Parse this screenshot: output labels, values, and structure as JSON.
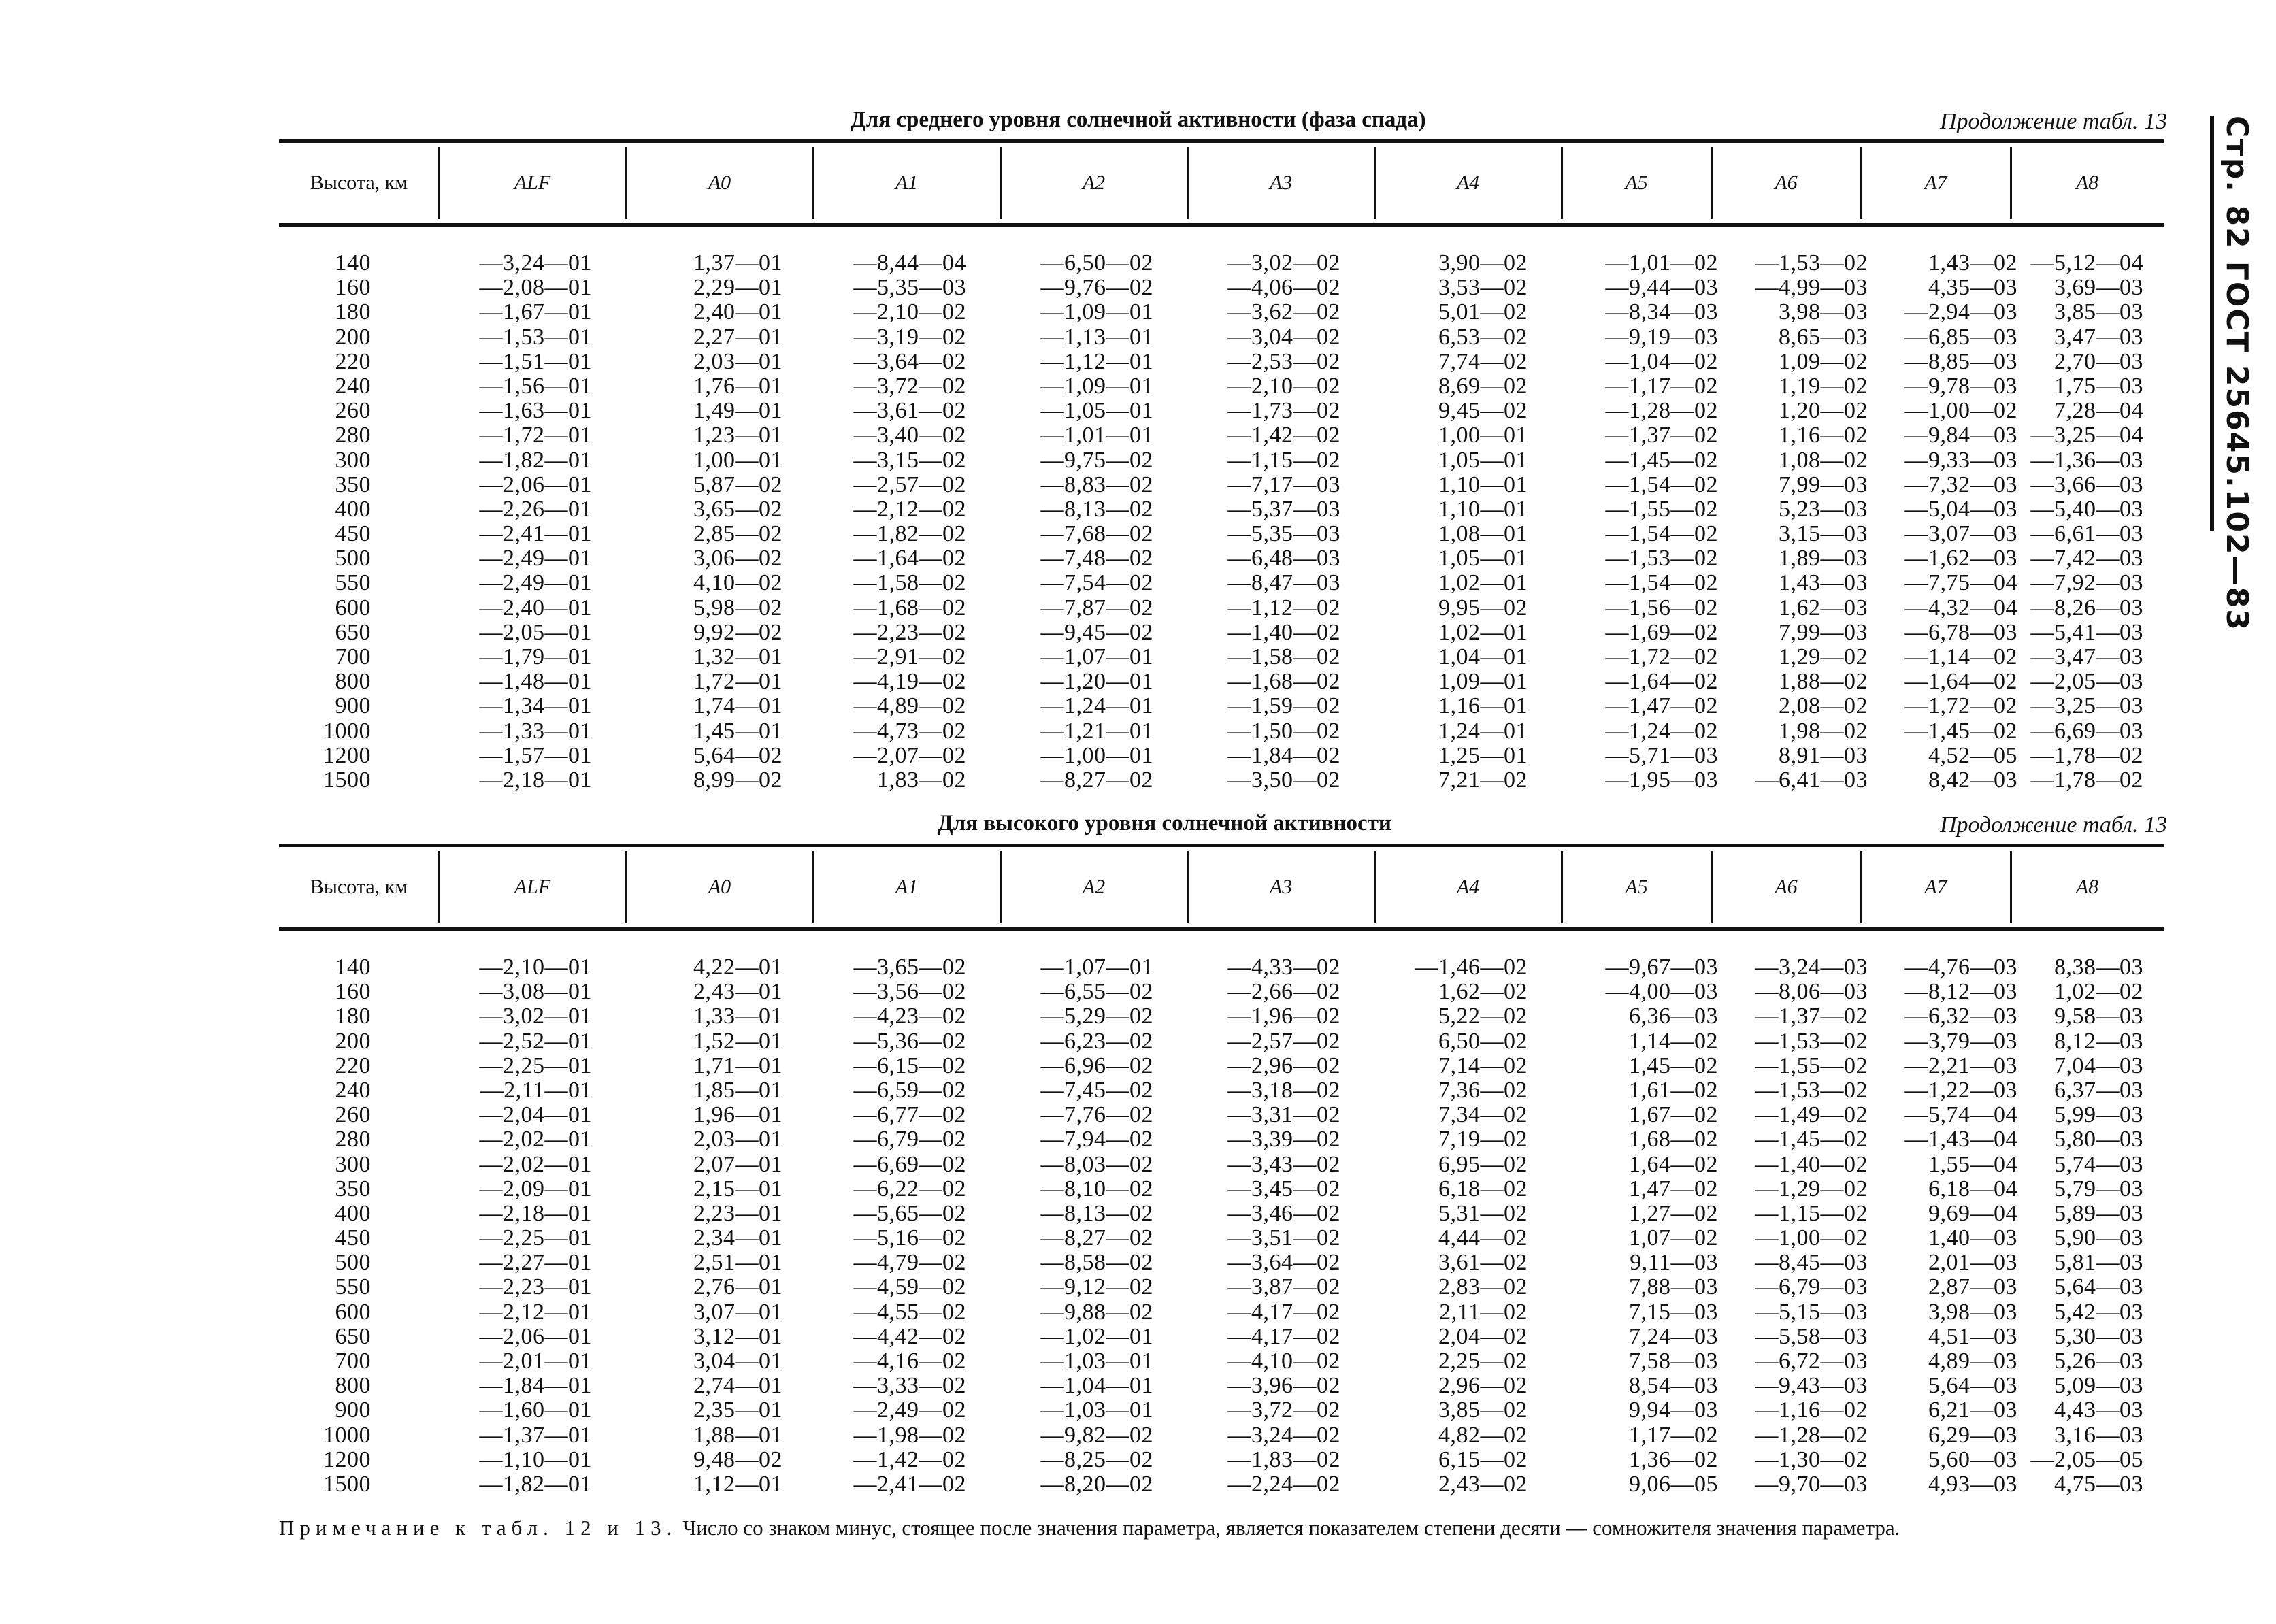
{
  "page_side_header": "Стр. 82 ГОСТ 25645.102—83",
  "tables": [
    {
      "caption": "Для среднего уровня солнечной активности (фаза спада)",
      "continuation": "Продолжение табл. 13",
      "headers": [
        "Высота, км",
        "ALF",
        "A0",
        "A1",
        "A2",
        "A3",
        "A4",
        "A5",
        "A6",
        "A7",
        "A8"
      ],
      "rows": [
        [
          "140",
          "—3,24—01",
          "1,37—01",
          "—8,44—04",
          "—6,50—02",
          "—3,02—02",
          "3,90—02",
          "—1,01—02",
          "—1,53—02",
          "1,43—02",
          "—5,12—04"
        ],
        [
          "160",
          "—2,08—01",
          "2,29—01",
          "—5,35—03",
          "—9,76—02",
          "—4,06—02",
          "3,53—02",
          "—9,44—03",
          "—4,99—03",
          "4,35—03",
          "3,69—03"
        ],
        [
          "180",
          "—1,67—01",
          "2,40—01",
          "—2,10—02",
          "—1,09—01",
          "—3,62—02",
          "5,01—02",
          "—8,34—03",
          "3,98—03",
          "—2,94—03",
          "3,85—03"
        ],
        [
          "200",
          "—1,53—01",
          "2,27—01",
          "—3,19—02",
          "—1,13—01",
          "—3,04—02",
          "6,53—02",
          "—9,19—03",
          "8,65—03",
          "—6,85—03",
          "3,47—03"
        ],
        [
          "220",
          "—1,51—01",
          "2,03—01",
          "—3,64—02",
          "—1,12—01",
          "—2,53—02",
          "7,74—02",
          "—1,04—02",
          "1,09—02",
          "—8,85—03",
          "2,70—03"
        ],
        [
          "240",
          "—1,56—01",
          "1,76—01",
          "—3,72—02",
          "—1,09—01",
          "—2,10—02",
          "8,69—02",
          "—1,17—02",
          "1,19—02",
          "—9,78—03",
          "1,75—03"
        ],
        [
          "260",
          "—1,63—01",
          "1,49—01",
          "—3,61—02",
          "—1,05—01",
          "—1,73—02",
          "9,45—02",
          "—1,28—02",
          "1,20—02",
          "—1,00—02",
          "7,28—04"
        ],
        [
          "280",
          "—1,72—01",
          "1,23—01",
          "—3,40—02",
          "—1,01—01",
          "—1,42—02",
          "1,00—01",
          "—1,37—02",
          "1,16—02",
          "—9,84—03",
          "—3,25—04"
        ],
        [
          "300",
          "—1,82—01",
          "1,00—01",
          "—3,15—02",
          "—9,75—02",
          "—1,15—02",
          "1,05—01",
          "—1,45—02",
          "1,08—02",
          "—9,33—03",
          "—1,36—03"
        ],
        [
          "350",
          "—2,06—01",
          "5,87—02",
          "—2,57—02",
          "—8,83—02",
          "—7,17—03",
          "1,10—01",
          "—1,54—02",
          "7,99—03",
          "—7,32—03",
          "—3,66—03"
        ],
        [
          "400",
          "—2,26—01",
          "3,65—02",
          "—2,12—02",
          "—8,13—02",
          "—5,37—03",
          "1,10—01",
          "—1,55—02",
          "5,23—03",
          "—5,04—03",
          "—5,40—03"
        ],
        [
          "450",
          "—2,41—01",
          "2,85—02",
          "—1,82—02",
          "—7,68—02",
          "—5,35—03",
          "1,08—01",
          "—1,54—02",
          "3,15—03",
          "—3,07—03",
          "—6,61—03"
        ],
        [
          "500",
          "—2,49—01",
          "3,06—02",
          "—1,64—02",
          "—7,48—02",
          "—6,48—03",
          "1,05—01",
          "—1,53—02",
          "1,89—03",
          "—1,62—03",
          "—7,42—03"
        ],
        [
          "550",
          "—2,49—01",
          "4,10—02",
          "—1,58—02",
          "—7,54—02",
          "—8,47—03",
          "1,02—01",
          "—1,54—02",
          "1,43—03",
          "—7,75—04",
          "—7,92—03"
        ],
        [
          "600",
          "—2,40—01",
          "5,98—02",
          "—1,68—02",
          "—7,87—02",
          "—1,12—02",
          "9,95—02",
          "—1,56—02",
          "1,62—03",
          "—4,32—04",
          "—8,26—03"
        ],
        [
          "650",
          "—2,05—01",
          "9,92—02",
          "—2,23—02",
          "—9,45—02",
          "—1,40—02",
          "1,02—01",
          "—1,69—02",
          "7,99—03",
          "—6,78—03",
          "—5,41—03"
        ],
        [
          "700",
          "—1,79—01",
          "1,32—01",
          "—2,91—02",
          "—1,07—01",
          "—1,58—02",
          "1,04—01",
          "—1,72—02",
          "1,29—02",
          "—1,14—02",
          "—3,47—03"
        ],
        [
          "800",
          "—1,48—01",
          "1,72—01",
          "—4,19—02",
          "—1,20—01",
          "—1,68—02",
          "1,09—01",
          "—1,64—02",
          "1,88—02",
          "—1,64—02",
          "—2,05—03"
        ],
        [
          "900",
          "—1,34—01",
          "1,74—01",
          "—4,89—02",
          "—1,24—01",
          "—1,59—02",
          "1,16—01",
          "—1,47—02",
          "2,08—02",
          "—1,72—02",
          "—3,25—03"
        ],
        [
          "1000",
          "—1,33—01",
          "1,45—01",
          "—4,73—02",
          "—1,21—01",
          "—1,50—02",
          "1,24—01",
          "—1,24—02",
          "1,98—02",
          "—1,45—02",
          "—6,69—03"
        ],
        [
          "1200",
          "—1,57—01",
          "5,64—02",
          "—2,07—02",
          "—1,00—01",
          "—1,84—02",
          "1,25—01",
          "—5,71—03",
          "8,91—03",
          "4,52—05",
          "—1,78—02"
        ],
        [
          "1500",
          "—2,18—01",
          "8,99—02",
          "1,83—02",
          "—8,27—02",
          "—3,50—02",
          "7,21—02",
          "—1,95—03",
          "—6,41—03",
          "8,42—03",
          "—1,78—02"
        ]
      ]
    },
    {
      "caption": "Для высокого уровня солнечной активности",
      "continuation": "Продолжение табл. 13",
      "headers": [
        "Высота, км",
        "ALF",
        "A0",
        "A1",
        "A2",
        "A3",
        "A4",
        "A5",
        "A6",
        "A7",
        "A8"
      ],
      "rows": [
        [
          "140",
          "—2,10—01",
          "4,22—01",
          "—3,65—02",
          "—1,07—01",
          "—4,33—02",
          "—1,46—02",
          "—9,67—03",
          "—3,24—03",
          "—4,76—03",
          "8,38—03"
        ],
        [
          "160",
          "—3,08—01",
          "2,43—01",
          "—3,56—02",
          "—6,55—02",
          "—2,66—02",
          "1,62—02",
          "—4,00—03",
          "—8,06—03",
          "—8,12—03",
          "1,02—02"
        ],
        [
          "180",
          "—3,02—01",
          "1,33—01",
          "—4,23—02",
          "—5,29—02",
          "—1,96—02",
          "5,22—02",
          "6,36—03",
          "—1,37—02",
          "—6,32—03",
          "9,58—03"
        ],
        [
          "200",
          "—2,52—01",
          "1,52—01",
          "—5,36—02",
          "—6,23—02",
          "—2,57—02",
          "6,50—02",
          "1,14—02",
          "—1,53—02",
          "—3,79—03",
          "8,12—03"
        ],
        [
          "220",
          "—2,25—01",
          "1,71—01",
          "—6,15—02",
          "—6,96—02",
          "—2,96—02",
          "7,14—02",
          "1,45—02",
          "—1,55—02",
          "—2,21—03",
          "7,04—03"
        ],
        [
          "240",
          "—2,11—01",
          "1,85—01",
          "—6,59—02",
          "—7,45—02",
          "—3,18—02",
          "7,36—02",
          "1,61—02",
          "—1,53—02",
          "—1,22—03",
          "6,37—03"
        ],
        [
          "260",
          "—2,04—01",
          "1,96—01",
          "—6,77—02",
          "—7,76—02",
          "—3,31—02",
          "7,34—02",
          "1,67—02",
          "—1,49—02",
          "—5,74—04",
          "5,99—03"
        ],
        [
          "280",
          "—2,02—01",
          "2,03—01",
          "—6,79—02",
          "—7,94—02",
          "—3,39—02",
          "7,19—02",
          "1,68—02",
          "—1,45—02",
          "—1,43—04",
          "5,80—03"
        ],
        [
          "300",
          "—2,02—01",
          "2,07—01",
          "—6,69—02",
          "—8,03—02",
          "—3,43—02",
          "6,95—02",
          "1,64—02",
          "—1,40—02",
          "1,55—04",
          "5,74—03"
        ],
        [
          "350",
          "—2,09—01",
          "2,15—01",
          "—6,22—02",
          "—8,10—02",
          "—3,45—02",
          "6,18—02",
          "1,47—02",
          "—1,29—02",
          "6,18—04",
          "5,79—03"
        ],
        [
          "400",
          "—2,18—01",
          "2,23—01",
          "—5,65—02",
          "—8,13—02",
          "—3,46—02",
          "5,31—02",
          "1,27—02",
          "—1,15—02",
          "9,69—04",
          "5,89—03"
        ],
        [
          "450",
          "—2,25—01",
          "2,34—01",
          "—5,16—02",
          "—8,27—02",
          "—3,51—02",
          "4,44—02",
          "1,07—02",
          "—1,00—02",
          "1,40—03",
          "5,90—03"
        ],
        [
          "500",
          "—2,27—01",
          "2,51—01",
          "—4,79—02",
          "—8,58—02",
          "—3,64—02",
          "3,61—02",
          "9,11—03",
          "—8,45—03",
          "2,01—03",
          "5,81—03"
        ],
        [
          "550",
          "—2,23—01",
          "2,76—01",
          "—4,59—02",
          "—9,12—02",
          "—3,87—02",
          "2,83—02",
          "7,88—03",
          "—6,79—03",
          "2,87—03",
          "5,64—03"
        ],
        [
          "600",
          "—2,12—01",
          "3,07—01",
          "—4,55—02",
          "—9,88—02",
          "—4,17—02",
          "2,11—02",
          "7,15—03",
          "—5,15—03",
          "3,98—03",
          "5,42—03"
        ],
        [
          "650",
          "—2,06—01",
          "3,12—01",
          "—4,42—02",
          "—1,02—01",
          "—4,17—02",
          "2,04—02",
          "7,24—03",
          "—5,58—03",
          "4,51—03",
          "5,30—03"
        ],
        [
          "700",
          "—2,01—01",
          "3,04—01",
          "—4,16—02",
          "—1,03—01",
          "—4,10—02",
          "2,25—02",
          "7,58—03",
          "—6,72—03",
          "4,89—03",
          "5,26—03"
        ],
        [
          "800",
          "—1,84—01",
          "2,74—01",
          "—3,33—02",
          "—1,04—01",
          "—3,96—02",
          "2,96—02",
          "8,54—03",
          "—9,43—03",
          "5,64—03",
          "5,09—03"
        ],
        [
          "900",
          "—1,60—01",
          "2,35—01",
          "—2,49—02",
          "—1,03—01",
          "—3,72—02",
          "3,85—02",
          "9,94—03",
          "—1,16—02",
          "6,21—03",
          "4,43—03"
        ],
        [
          "1000",
          "—1,37—01",
          "1,88—01",
          "—1,98—02",
          "—9,82—02",
          "—3,24—02",
          "4,82—02",
          "1,17—02",
          "—1,28—02",
          "6,29—03",
          "3,16—03"
        ],
        [
          "1200",
          "—1,10—01",
          "9,48—02",
          "—1,42—02",
          "—8,25—02",
          "—1,83—02",
          "6,15—02",
          "1,36—02",
          "—1,30—02",
          "5,60—03",
          "—2,05—05"
        ],
        [
          "1500",
          "—1,82—01",
          "1,12—01",
          "—2,41—02",
          "—8,20—02",
          "—2,24—02",
          "2,43—02",
          "9,06—05",
          "—9,70—03",
          "4,93—03",
          "4,75—03"
        ]
      ]
    }
  ],
  "note": {
    "label": "Примечание к табл. 12 и 13.",
    "text": "Число со знаком минус, стоящее после значения параметра, является показателем степени десяти — сомножителя значения параметра."
  }
}
